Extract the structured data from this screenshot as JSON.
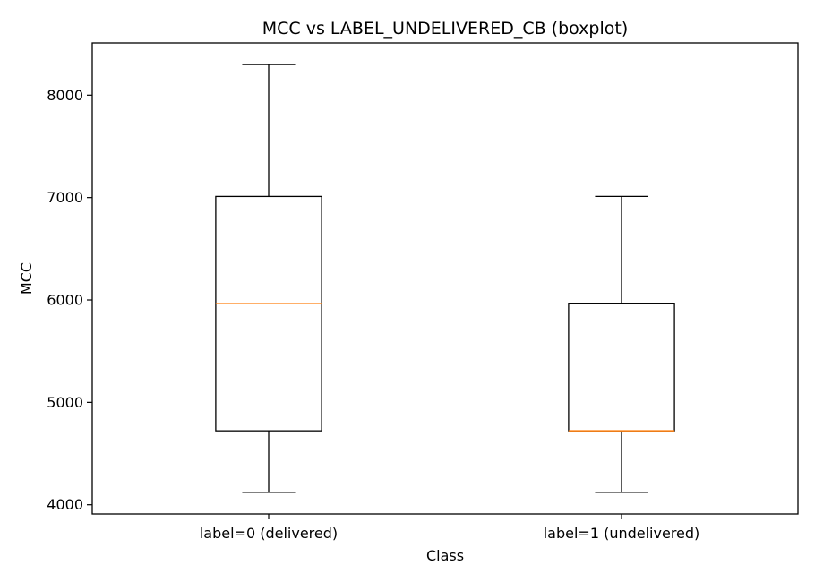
{
  "chart_data": {
    "type": "boxplot",
    "title": "MCC vs LABEL_UNDELIVERED_CB (boxplot)",
    "xlabel": "Class",
    "ylabel": "MCC",
    "ylim": [
      3910,
      8510
    ],
    "yticks": [
      4000,
      5000,
      6000,
      7000,
      8000
    ],
    "grid": false,
    "categories": [
      "label=0 (delivered)",
      "label=1 (undelivered)"
    ],
    "boxes": [
      {
        "whisker_low": 4121,
        "q1": 4722,
        "median": 5964,
        "q3": 7011,
        "whisker_high": 8299
      },
      {
        "whisker_low": 4121,
        "q1": 4722,
        "median": 4722,
        "q3": 5968,
        "whisker_high": 7011
      }
    ],
    "colors": {
      "box": "#000000",
      "median": "#ff7f0e",
      "axes": "#000000"
    }
  }
}
